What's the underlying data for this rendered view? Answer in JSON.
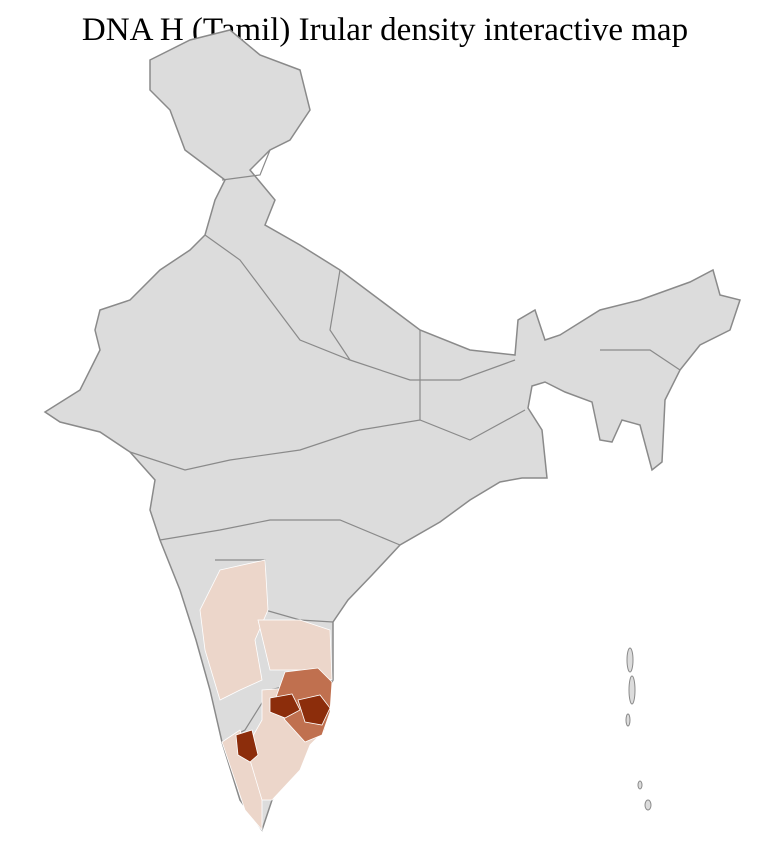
{
  "title": "DNA H (Tamil) Irular density interactive map",
  "colors": {
    "no_data": "#dcdcdc",
    "district_border": "#ffffff",
    "state_border": "#8a8a8a",
    "density_low": "#ecd6ca",
    "density_medium": "#c0704f",
    "density_high": "#8c2d0b"
  }
}
